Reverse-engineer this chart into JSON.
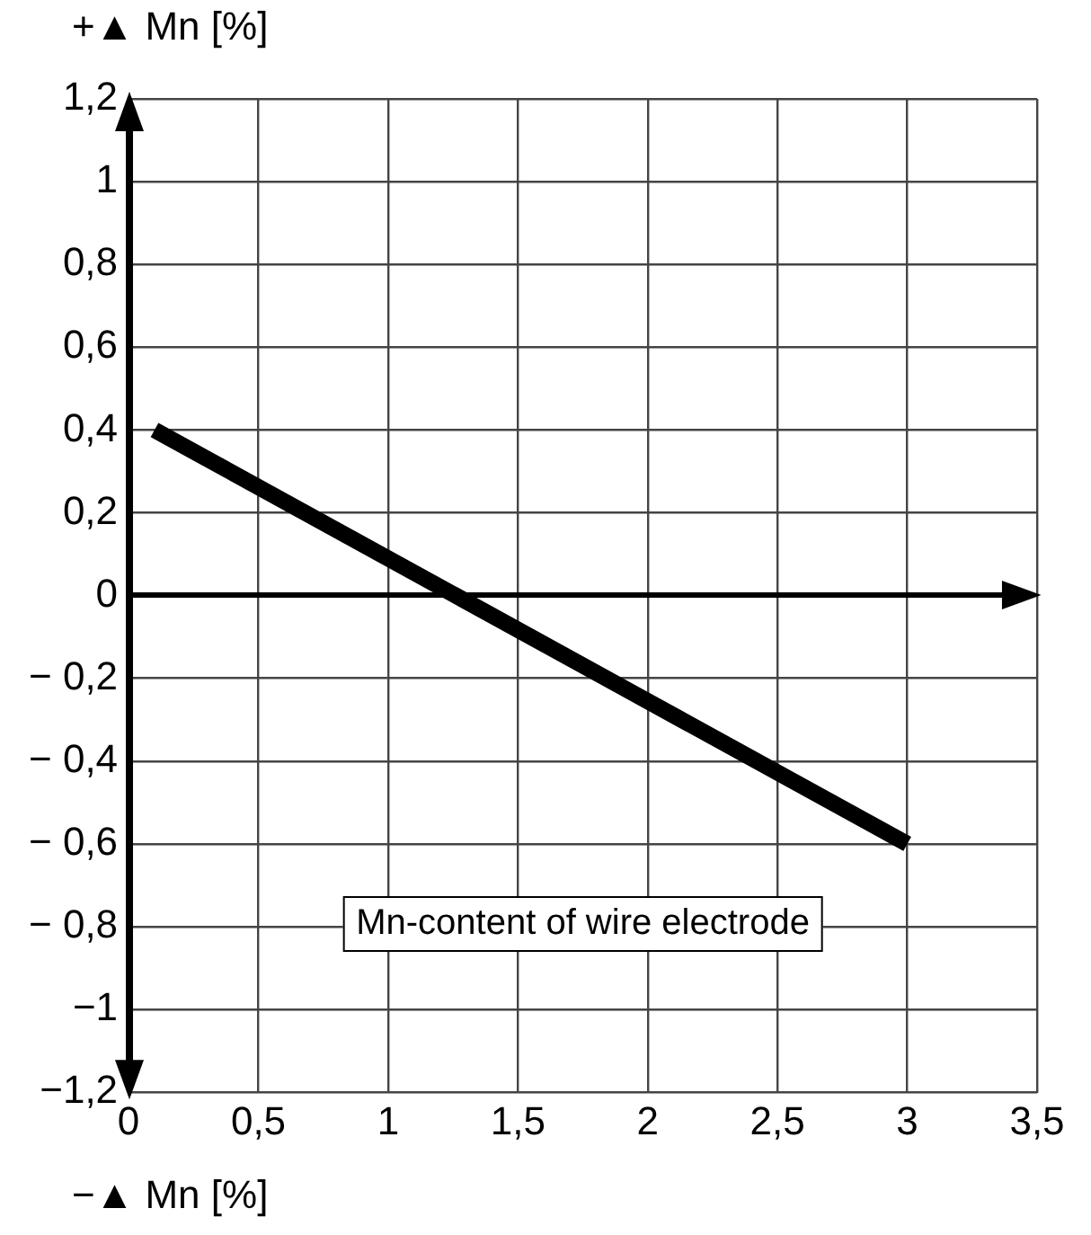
{
  "chart_data": {
    "type": "line",
    "ylabel": "+▲ Mn [%]",
    "xlabel": "−▲ Mn [%]",
    "annotations": [
      "Mn-content of wire electrode"
    ],
    "series": [
      {
        "x": [
          0.1,
          3
        ],
        "values": [
          0.4,
          -0.6
        ],
        "color": "#000000"
      }
    ],
    "xlim": [
      0,
      3.5
    ],
    "xticks": [
      0,
      {
        "value": 0.5,
        "label": "0,5"
      },
      1,
      {
        "value": 1.5,
        "label": "1,5"
      },
      2,
      {
        "value": 2.5,
        "label": "2,5"
      },
      3,
      {
        "value": 3.5,
        "label": "3,5"
      }
    ],
    "ylim": [
      -1.2,
      1.2
    ],
    "yticks": [
      {
        "value": -1.2,
        "label": "−1,2"
      },
      {
        "value": -1,
        "label": "−1"
      },
      {
        "value": -0.8,
        "label": "− 0,8"
      },
      {
        "value": -0.6,
        "label": "− 0,6"
      },
      {
        "value": -0.4,
        "label": "− 0,4"
      },
      {
        "value": -0.2,
        "label": "− 0,2"
      },
      0,
      {
        "value": 0.2,
        "label": "0,2"
      },
      {
        "value": 0.4,
        "label": "0,4"
      },
      {
        "value": 0.6,
        "label": "0,6"
      },
      {
        "value": 0.8,
        "label": "0,8"
      },
      1,
      {
        "value": 1.2,
        "label": "1,2"
      }
    ],
    "grid": true,
    "legend": false,
    "marker": "none",
    "line_style": "solid"
  }
}
